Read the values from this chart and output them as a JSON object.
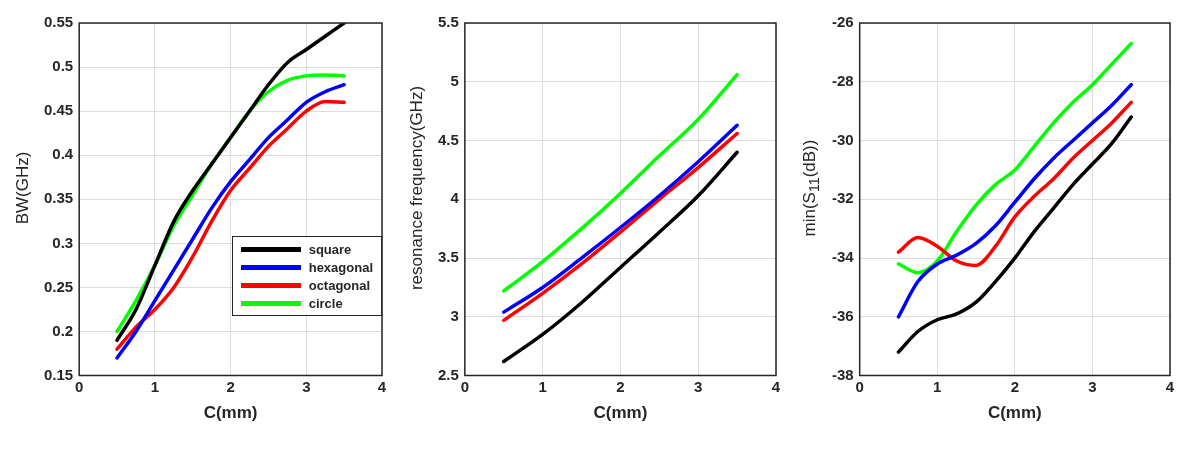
{
  "chart_data": [
    {
      "type": "line",
      "xlabel": "C(mm)",
      "ylabel": "BW(GHz)",
      "xlim": [
        0,
        4
      ],
      "xticks": [
        0,
        1,
        2,
        3,
        4
      ],
      "ylim": [
        0.15,
        0.55
      ],
      "yticks": [
        0.15,
        0.2,
        0.25,
        0.3,
        0.35,
        0.4,
        0.45,
        0.5,
        0.55
      ],
      "grid": true,
      "legend": "bottom right",
      "x": [
        0.5,
        0.75,
        1,
        1.25,
        1.5,
        1.75,
        2,
        2.25,
        2.5,
        2.75,
        3,
        3.25,
        3.5
      ],
      "series": [
        {
          "name": "square",
          "color": "#000000",
          "values": [
            0.19,
            0.225,
            0.275,
            0.325,
            0.36,
            0.39,
            0.42,
            0.45,
            0.48,
            0.505,
            0.52,
            0.535,
            0.55
          ]
        },
        {
          "name": "hexagonal",
          "color": "#0000ff",
          "values": [
            0.17,
            0.2,
            0.235,
            0.27,
            0.305,
            0.34,
            0.37,
            0.395,
            0.42,
            0.44,
            0.46,
            0.472,
            0.48
          ]
        },
        {
          "name": "octagonal",
          "color": "#ff0000",
          "values": [
            0.18,
            0.205,
            0.225,
            0.25,
            0.285,
            0.325,
            0.36,
            0.385,
            0.41,
            0.43,
            0.45,
            0.461,
            0.46
          ]
        },
        {
          "name": "circle",
          "color": "#00ff00",
          "values": [
            0.2,
            0.235,
            0.275,
            0.32,
            0.355,
            0.39,
            0.42,
            0.45,
            0.472,
            0.485,
            0.49,
            0.491,
            0.49
          ]
        }
      ]
    },
    {
      "type": "line",
      "xlabel": "C(mm)",
      "ylabel": "resonance frequency(GHz)",
      "xlim": [
        0,
        4
      ],
      "xticks": [
        0,
        1,
        2,
        3,
        4
      ],
      "ylim": [
        2.5,
        5.5
      ],
      "yticks": [
        2.5,
        3,
        3.5,
        4,
        4.5,
        5,
        5.5
      ],
      "grid": true,
      "x": [
        0.5,
        1,
        1.5,
        2,
        2.5,
        3,
        3.5
      ],
      "series": [
        {
          "color": "#000000",
          "values": [
            2.62,
            2.85,
            3.12,
            3.42,
            3.72,
            4.03,
            4.4
          ]
        },
        {
          "color": "#0000ff",
          "values": [
            3.04,
            3.25,
            3.5,
            3.76,
            4.03,
            4.32,
            4.63
          ]
        },
        {
          "color": "#ff0000",
          "values": [
            2.97,
            3.2,
            3.45,
            3.72,
            4.0,
            4.27,
            4.56
          ]
        },
        {
          "color": "#00ff00",
          "values": [
            3.22,
            3.47,
            3.75,
            4.05,
            4.37,
            4.68,
            5.06
          ]
        }
      ]
    },
    {
      "type": "line",
      "xlabel": "C(mm)",
      "ylabel": "min(S$_{11}$(dB))",
      "xlim": [
        0,
        4
      ],
      "xticks": [
        0,
        1,
        2,
        3,
        4
      ],
      "ylim": [
        -38,
        -26
      ],
      "yticks": [
        -38,
        -36,
        -34,
        -32,
        -30,
        -28,
        -26
      ],
      "grid": true,
      "x": [
        0.5,
        0.75,
        1,
        1.25,
        1.5,
        1.75,
        2,
        2.25,
        2.5,
        2.75,
        3,
        3.25,
        3.5
      ],
      "series": [
        {
          "color": "#000000",
          "values": [
            -37.2,
            -36.5,
            -36.1,
            -35.9,
            -35.5,
            -34.8,
            -34.0,
            -33.1,
            -32.3,
            -31.5,
            -30.8,
            -30.1,
            -29.2
          ]
        },
        {
          "color": "#0000ff",
          "values": [
            -36.0,
            -34.8,
            -34.2,
            -33.9,
            -33.5,
            -32.9,
            -32.1,
            -31.3,
            -30.6,
            -30.0,
            -29.4,
            -28.8,
            -28.1
          ]
        },
        {
          "color": "#ff0000",
          "values": [
            -33.8,
            -33.3,
            -33.6,
            -34.1,
            -34.25,
            -33.6,
            -32.6,
            -31.9,
            -31.3,
            -30.6,
            -30.0,
            -29.4,
            -28.7
          ]
        },
        {
          "color": "#00ff00",
          "values": [
            -34.2,
            -34.5,
            -34.1,
            -33.1,
            -32.2,
            -31.5,
            -31.0,
            -30.2,
            -29.4,
            -28.7,
            -28.1,
            -27.4,
            -26.7
          ]
        }
      ]
    }
  ]
}
